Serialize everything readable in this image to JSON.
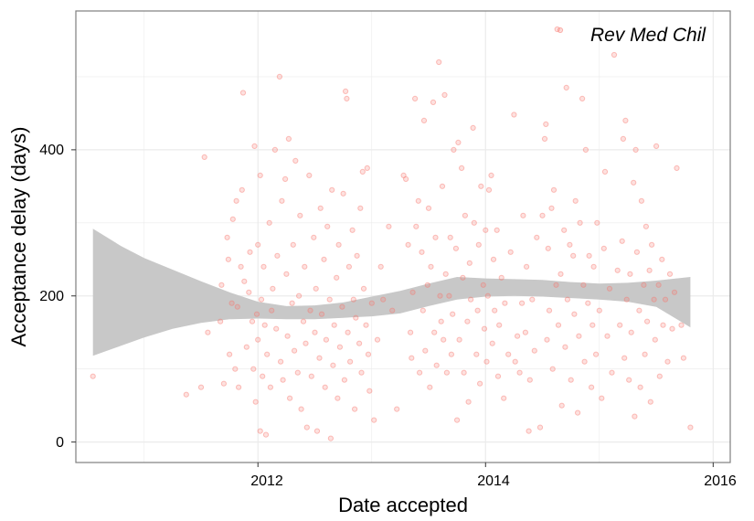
{
  "chart_data": {
    "type": "scatter",
    "title": "",
    "xlabel": "Date accepted",
    "ylabel": "Acceptance delay (days)",
    "x_ticks": [
      "2012",
      "2014",
      "2016"
    ],
    "y_ticks": [
      "0",
      "200",
      "400"
    ],
    "xlim": [
      2010.4,
      2016.15
    ],
    "ylim": [
      -28,
      590
    ],
    "grid": true,
    "legend": {
      "position": "top-right",
      "entries": [
        "Rev Med Chil"
      ]
    },
    "colors": {
      "points": "#f8766d",
      "ribbon": "#c8c8c8",
      "frame": "#7f7f7f",
      "grid": "#ebebeb"
    },
    "smooth_band": {
      "x": [
        2010.55,
        2010.8,
        2011.0,
        2011.25,
        2011.5,
        2011.75,
        2012.0,
        2012.25,
        2012.5,
        2012.75,
        2013.0,
        2013.25,
        2013.5,
        2013.75,
        2014.0,
        2014.25,
        2014.5,
        2014.75,
        2015.0,
        2015.25,
        2015.5,
        2015.8
      ],
      "lower": [
        118,
        132,
        143,
        155,
        163,
        168,
        169,
        168,
        168,
        170,
        172,
        176,
        186,
        195,
        199,
        200,
        199,
        197,
        195,
        192,
        185,
        157
      ],
      "upper": [
        292,
        268,
        252,
        236,
        220,
        205,
        192,
        186,
        187,
        191,
        199,
        207,
        217,
        226,
        224,
        223,
        222,
        219,
        217,
        218,
        221,
        226
      ]
    },
    "points": [
      [
        2010.55,
        90
      ],
      [
        2011.37,
        65
      ],
      [
        2011.53,
        390
      ],
      [
        2011.5,
        75
      ],
      [
        2011.56,
        150
      ],
      [
        2011.67,
        165
      ],
      [
        2011.68,
        215
      ],
      [
        2011.7,
        80
      ],
      [
        2011.73,
        280
      ],
      [
        2011.74,
        250
      ],
      [
        2011.75,
        120
      ],
      [
        2011.77,
        190
      ],
      [
        2011.78,
        305
      ],
      [
        2011.8,
        100
      ],
      [
        2011.81,
        330
      ],
      [
        2011.82,
        185
      ],
      [
        2011.83,
        75
      ],
      [
        2011.85,
        240
      ],
      [
        2011.86,
        345
      ],
      [
        2011.87,
        478
      ],
      [
        2011.88,
        220
      ],
      [
        2011.9,
        130
      ],
      [
        2011.92,
        205
      ],
      [
        2011.93,
        260
      ],
      [
        2011.95,
        165
      ],
      [
        2011.96,
        100
      ],
      [
        2011.97,
        405
      ],
      [
        2011.98,
        55
      ],
      [
        2011.99,
        175
      ],
      [
        2012.0,
        140
      ],
      [
        2012.0,
        270
      ],
      [
        2012.02,
        365
      ],
      [
        2012.02,
        15
      ],
      [
        2012.03,
        195
      ],
      [
        2012.04,
        90
      ],
      [
        2012.05,
        240
      ],
      [
        2012.06,
        160
      ],
      [
        2012.07,
        10
      ],
      [
        2012.08,
        120
      ],
      [
        2012.1,
        300
      ],
      [
        2012.11,
        75
      ],
      [
        2012.12,
        180
      ],
      [
        2012.13,
        210
      ],
      [
        2012.15,
        400
      ],
      [
        2012.16,
        155
      ],
      [
        2012.17,
        255
      ],
      [
        2012.19,
        500
      ],
      [
        2012.2,
        110
      ],
      [
        2012.21,
        330
      ],
      [
        2012.22,
        85
      ],
      [
        2012.24,
        360
      ],
      [
        2012.25,
        230
      ],
      [
        2012.26,
        145
      ],
      [
        2012.27,
        415
      ],
      [
        2012.28,
        60
      ],
      [
        2012.3,
        190
      ],
      [
        2012.31,
        270
      ],
      [
        2012.32,
        125
      ],
      [
        2012.33,
        385
      ],
      [
        2012.35,
        95
      ],
      [
        2012.36,
        200
      ],
      [
        2012.37,
        310
      ],
      [
        2012.38,
        45
      ],
      [
        2012.4,
        165
      ],
      [
        2012.41,
        240
      ],
      [
        2012.42,
        135
      ],
      [
        2012.43,
        20
      ],
      [
        2012.45,
        365
      ],
      [
        2012.46,
        180
      ],
      [
        2012.47,
        90
      ],
      [
        2012.49,
        280
      ],
      [
        2012.5,
        150
      ],
      [
        2012.51,
        210
      ],
      [
        2012.52,
        15
      ],
      [
        2012.54,
        115
      ],
      [
        2012.55,
        320
      ],
      [
        2012.56,
        175
      ],
      [
        2012.58,
        250
      ],
      [
        2012.59,
        75
      ],
      [
        2012.6,
        140
      ],
      [
        2012.61,
        295
      ],
      [
        2012.63,
        195
      ],
      [
        2012.64,
        5
      ],
      [
        2012.65,
        345
      ],
      [
        2012.66,
        105
      ],
      [
        2012.67,
        160
      ],
      [
        2012.69,
        225
      ],
      [
        2012.7,
        60
      ],
      [
        2012.71,
        270
      ],
      [
        2012.72,
        130
      ],
      [
        2012.74,
        185
      ],
      [
        2012.75,
        340
      ],
      [
        2012.76,
        85
      ],
      [
        2012.77,
        480
      ],
      [
        2012.78,
        470
      ],
      [
        2012.79,
        150
      ],
      [
        2012.8,
        240
      ],
      [
        2012.81,
        110
      ],
      [
        2012.83,
        290
      ],
      [
        2012.84,
        195
      ],
      [
        2012.85,
        45
      ],
      [
        2012.86,
        170
      ],
      [
        2012.87,
        255
      ],
      [
        2012.89,
        135
      ],
      [
        2012.9,
        320
      ],
      [
        2012.91,
        95
      ],
      [
        2012.92,
        370
      ],
      [
        2012.93,
        210
      ],
      [
        2012.95,
        160
      ],
      [
        2012.96,
        375
      ],
      [
        2012.97,
        120
      ],
      [
        2012.98,
        70
      ],
      [
        2013.0,
        190
      ],
      [
        2013.02,
        30
      ],
      [
        2013.05,
        140
      ],
      [
        2013.08,
        240
      ],
      [
        2013.1,
        195
      ],
      [
        2013.15,
        295
      ],
      [
        2013.18,
        180
      ],
      [
        2013.22,
        45
      ],
      [
        2013.28,
        365
      ],
      [
        2013.3,
        360
      ],
      [
        2013.32,
        270
      ],
      [
        2013.34,
        150
      ],
      [
        2013.35,
        115
      ],
      [
        2013.36,
        205
      ],
      [
        2013.38,
        470
      ],
      [
        2013.39,
        295
      ],
      [
        2013.41,
        330
      ],
      [
        2013.42,
        95
      ],
      [
        2013.44,
        260
      ],
      [
        2013.45,
        180
      ],
      [
        2013.46,
        440
      ],
      [
        2013.47,
        125
      ],
      [
        2013.49,
        215
      ],
      [
        2013.5,
        320
      ],
      [
        2013.51,
        75
      ],
      [
        2013.52,
        240
      ],
      [
        2013.54,
        465
      ],
      [
        2013.55,
        150
      ],
      [
        2013.56,
        280
      ],
      [
        2013.57,
        105
      ],
      [
        2013.59,
        520
      ],
      [
        2013.6,
        200
      ],
      [
        2013.61,
        165
      ],
      [
        2013.62,
        350
      ],
      [
        2013.63,
        140
      ],
      [
        2013.64,
        475
      ],
      [
        2013.65,
        230
      ],
      [
        2013.66,
        95
      ],
      [
        2013.68,
        200
      ],
      [
        2013.69,
        280
      ],
      [
        2013.7,
        120
      ],
      [
        2013.71,
        175
      ],
      [
        2013.72,
        400
      ],
      [
        2013.74,
        265
      ],
      [
        2013.75,
        30
      ],
      [
        2013.76,
        410
      ],
      [
        2013.77,
        140
      ],
      [
        2013.79,
        375
      ],
      [
        2013.8,
        225
      ],
      [
        2013.81,
        95
      ],
      [
        2013.82,
        310
      ],
      [
        2013.84,
        165
      ],
      [
        2013.85,
        55
      ],
      [
        2013.86,
        245
      ],
      [
        2013.87,
        195
      ],
      [
        2013.89,
        430
      ],
      [
        2013.9,
        300
      ],
      [
        2013.92,
        120
      ],
      [
        2013.93,
        180
      ],
      [
        2013.94,
        270
      ],
      [
        2013.95,
        80
      ],
      [
        2013.96,
        350
      ],
      [
        2013.98,
        215
      ],
      [
        2013.99,
        155
      ],
      [
        2014.0,
        290
      ],
      [
        2014.01,
        110
      ],
      [
        2014.02,
        200
      ],
      [
        2014.03,
        345
      ],
      [
        2014.05,
        365
      ],
      [
        2014.06,
        135
      ],
      [
        2014.07,
        250
      ],
      [
        2014.08,
        180
      ],
      [
        2014.1,
        290
      ],
      [
        2014.11,
        90
      ],
      [
        2014.12,
        160
      ],
      [
        2014.14,
        225
      ],
      [
        2014.16,
        60
      ],
      [
        2014.17,
        190
      ],
      [
        2014.2,
        120
      ],
      [
        2014.22,
        260
      ],
      [
        2014.25,
        448
      ],
      [
        2014.26,
        110
      ],
      [
        2014.28,
        145
      ],
      [
        2014.3,
        95
      ],
      [
        2014.32,
        190
      ],
      [
        2014.33,
        310
      ],
      [
        2014.35,
        150
      ],
      [
        2014.36,
        240
      ],
      [
        2014.38,
        15
      ],
      [
        2014.39,
        85
      ],
      [
        2014.41,
        195
      ],
      [
        2014.43,
        125
      ],
      [
        2014.45,
        280
      ],
      [
        2014.48,
        20
      ],
      [
        2014.5,
        310
      ],
      [
        2014.52,
        415
      ],
      [
        2014.53,
        435
      ],
      [
        2014.54,
        140
      ],
      [
        2014.55,
        265
      ],
      [
        2014.56,
        180
      ],
      [
        2014.58,
        320
      ],
      [
        2014.59,
        100
      ],
      [
        2014.6,
        345
      ],
      [
        2014.62,
        215
      ],
      [
        2014.63,
        565
      ],
      [
        2014.64,
        160
      ],
      [
        2014.66,
        230
      ],
      [
        2014.67,
        50
      ],
      [
        2014.69,
        290
      ],
      [
        2014.7,
        130
      ],
      [
        2014.71,
        485
      ],
      [
        2014.72,
        195
      ],
      [
        2014.74,
        270
      ],
      [
        2014.75,
        85
      ],
      [
        2014.77,
        255
      ],
      [
        2014.78,
        175
      ],
      [
        2014.79,
        330
      ],
      [
        2014.81,
        40
      ],
      [
        2014.82,
        145
      ],
      [
        2014.83,
        300
      ],
      [
        2014.85,
        470
      ],
      [
        2014.86,
        215
      ],
      [
        2014.87,
        110
      ],
      [
        2014.88,
        400
      ],
      [
        2014.9,
        190
      ],
      [
        2014.91,
        255
      ],
      [
        2014.93,
        75
      ],
      [
        2014.94,
        160
      ],
      [
        2014.95,
        240
      ],
      [
        2014.97,
        120
      ],
      [
        2014.98,
        300
      ],
      [
        2015.0,
        180
      ],
      [
        2015.02,
        60
      ],
      [
        2015.04,
        265
      ],
      [
        2015.05,
        370
      ],
      [
        2015.07,
        145
      ],
      [
        2015.09,
        210
      ],
      [
        2015.11,
        95
      ],
      [
        2015.13,
        530
      ],
      [
        2015.16,
        235
      ],
      [
        2015.18,
        160
      ],
      [
        2015.2,
        275
      ],
      [
        2015.21,
        415
      ],
      [
        2015.22,
        115
      ],
      [
        2015.23,
        440
      ],
      [
        2015.24,
        195
      ],
      [
        2015.26,
        85
      ],
      [
        2015.27,
        230
      ],
      [
        2015.28,
        150
      ],
      [
        2015.3,
        355
      ],
      [
        2015.31,
        35
      ],
      [
        2015.32,
        400
      ],
      [
        2015.33,
        260
      ],
      [
        2015.35,
        180
      ],
      [
        2015.36,
        75
      ],
      [
        2015.37,
        330
      ],
      [
        2015.39,
        215
      ],
      [
        2015.4,
        120
      ],
      [
        2015.41,
        295
      ],
      [
        2015.42,
        165
      ],
      [
        2015.44,
        235
      ],
      [
        2015.45,
        55
      ],
      [
        2015.46,
        270
      ],
      [
        2015.48,
        195
      ],
      [
        2015.49,
        140
      ],
      [
        2015.5,
        405
      ],
      [
        2015.52,
        215
      ],
      [
        2015.53,
        90
      ],
      [
        2015.55,
        250
      ],
      [
        2015.56,
        160
      ],
      [
        2015.58,
        195
      ],
      [
        2015.6,
        110
      ],
      [
        2015.62,
        230
      ],
      [
        2015.64,
        155
      ],
      [
        2015.66,
        205
      ],
      [
        2015.68,
        375
      ],
      [
        2015.72,
        160
      ],
      [
        2015.74,
        115
      ],
      [
        2015.8,
        20
      ]
    ]
  }
}
